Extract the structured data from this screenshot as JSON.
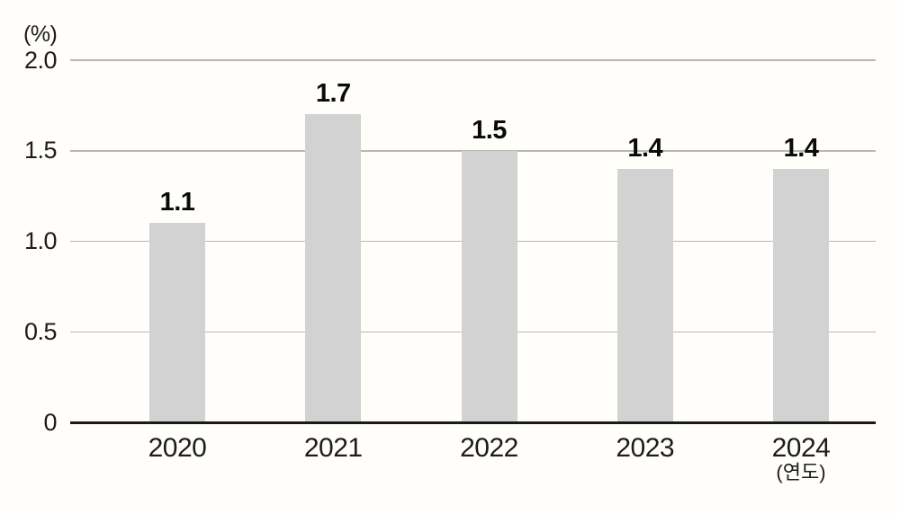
{
  "chart_data": {
    "type": "bar",
    "title": "",
    "ylabel": "(%)",
    "xlabel": "",
    "xlabel_suffix": "(연도)",
    "categories": [
      "2020",
      "2021",
      "2022",
      "2023",
      "2024"
    ],
    "values": [
      1.1,
      1.7,
      1.5,
      1.4,
      1.4
    ],
    "value_labels": [
      "1.1",
      "1.7",
      "1.5",
      "1.4",
      "1.4"
    ],
    "yticks": [
      {
        "value": 0,
        "label": "0"
      },
      {
        "value": 0.5,
        "label": "0.5"
      },
      {
        "value": 1.0,
        "label": "1.0"
      },
      {
        "value": 1.5,
        "label": "1.5"
      },
      {
        "value": 2.0,
        "label": "2.0"
      }
    ],
    "ylim": [
      0,
      2.0
    ],
    "grid": true,
    "legend": "none",
    "colors": {
      "background": "#fffefa",
      "bar": "#d2d2d2",
      "gridline": "#b7b7b3",
      "axis_line": "#1a1a1a",
      "tick_text": "#1c1c1c",
      "value_label_text": "#0a0a0a"
    }
  }
}
